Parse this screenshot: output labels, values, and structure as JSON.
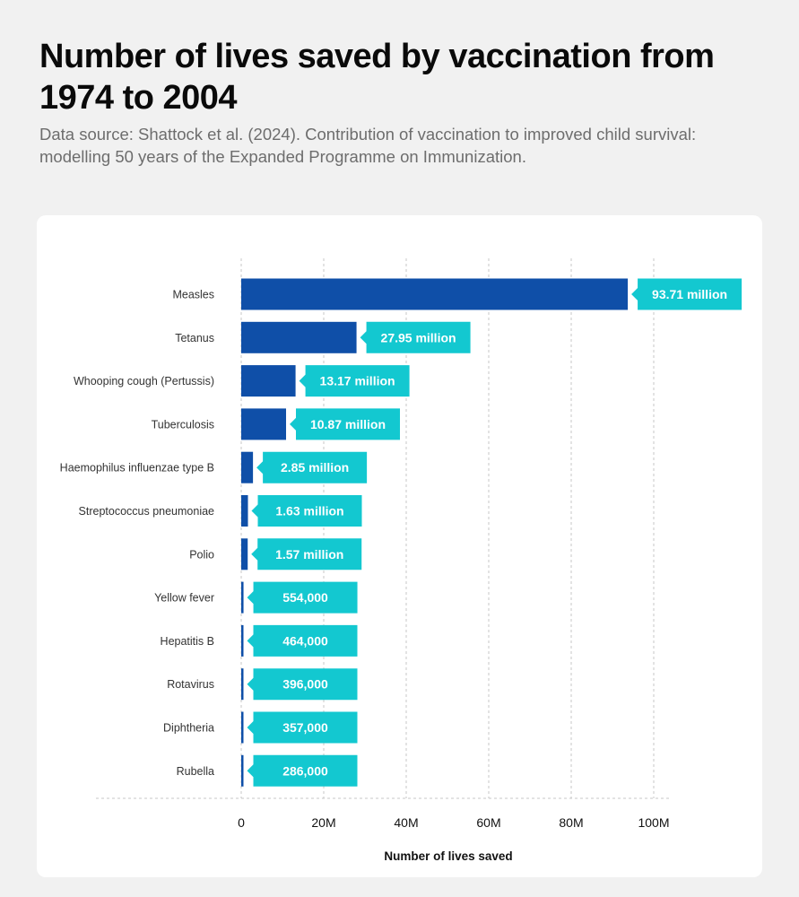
{
  "header": {
    "title": "Number of lives saved by vaccination from 1974 to 2004",
    "subtitle": "Data source: Shattock et al. (2024). Contribution of vaccination to improved child survival: modelling 50 years of the Expanded Programme on Immunization."
  },
  "colors": {
    "bar": "#0f4fa8",
    "label_bg": "#13c8d0",
    "grid": "#c7c7c7"
  },
  "chart_data": {
    "type": "bar",
    "orientation": "horizontal",
    "categories": [
      "Measles",
      "Tetanus",
      "Whooping cough (Pertussis)",
      "Tuberculosis",
      "Haemophilus influenzae type B",
      "Streptococcus pneumoniae",
      "Polio",
      "Yellow fever",
      "Hepatitis B",
      "Rotavirus",
      "Diphtheria",
      "Rubella"
    ],
    "values": [
      93710000,
      27950000,
      13170000,
      10870000,
      2850000,
      1630000,
      1570000,
      554000,
      464000,
      396000,
      357000,
      286000
    ],
    "data_labels": [
      "93.71 million",
      "27.95 million",
      "13.17 million",
      "10.87 million",
      "2.85 million",
      "1.63 million",
      "1.57 million",
      "554,000",
      "464,000",
      "396,000",
      "357,000",
      "286,000"
    ],
    "xlim": [
      0,
      100000000
    ],
    "x_ticks": [
      0,
      20000000,
      40000000,
      60000000,
      80000000,
      100000000
    ],
    "x_tick_labels": [
      "0",
      "20M",
      "40M",
      "60M",
      "80M",
      "100M"
    ],
    "xlabel": "Number of lives saved",
    "grid": true
  }
}
